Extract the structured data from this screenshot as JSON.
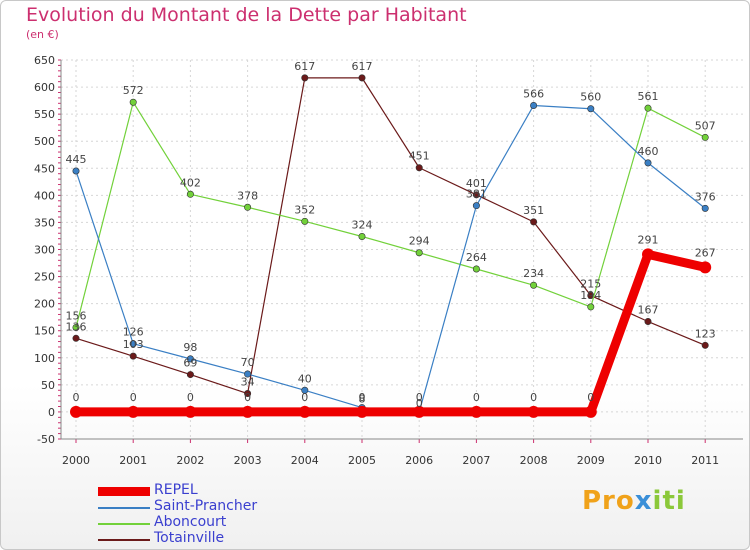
{
  "chart_data": {
    "type": "line",
    "title": "Evolution du Montant de la Dette par Habitant",
    "subtitle": "(en €)",
    "xlabel": "",
    "ylabel": "",
    "ylim": [
      -50,
      650
    ],
    "yticks": [
      -50,
      0,
      50,
      100,
      150,
      200,
      250,
      300,
      350,
      400,
      450,
      500,
      550,
      600,
      650
    ],
    "grid": true,
    "categories": [
      "2000",
      "2001",
      "2002",
      "2003",
      "2004",
      "2005",
      "2006",
      "2007",
      "2008",
      "2009",
      "2010",
      "2011"
    ],
    "series": [
      {
        "name": "REPEL",
        "color": "#ee0000",
        "values": [
          0,
          0,
          0,
          0,
          0,
          0,
          0,
          0,
          0,
          0,
          291,
          267
        ]
      },
      {
        "name": "Saint-Prancher",
        "color": "#3a7fc4",
        "values": [
          445,
          126,
          98,
          70,
          40,
          8,
          0,
          381,
          566,
          560,
          460,
          376
        ]
      },
      {
        "name": "Aboncourt",
        "color": "#72d13a",
        "values": [
          156,
          572,
          402,
          378,
          352,
          324,
          294,
          264,
          234,
          194,
          561,
          507
        ]
      },
      {
        "name": "Totainville",
        "color": "#6b1a1a",
        "values": [
          136,
          103,
          69,
          34,
          617,
          617,
          451,
          401,
          351,
          215,
          167,
          123
        ]
      }
    ],
    "legend_position": "bottom-left"
  },
  "brand": {
    "parts": [
      "Pro",
      "x",
      "iti"
    ]
  }
}
